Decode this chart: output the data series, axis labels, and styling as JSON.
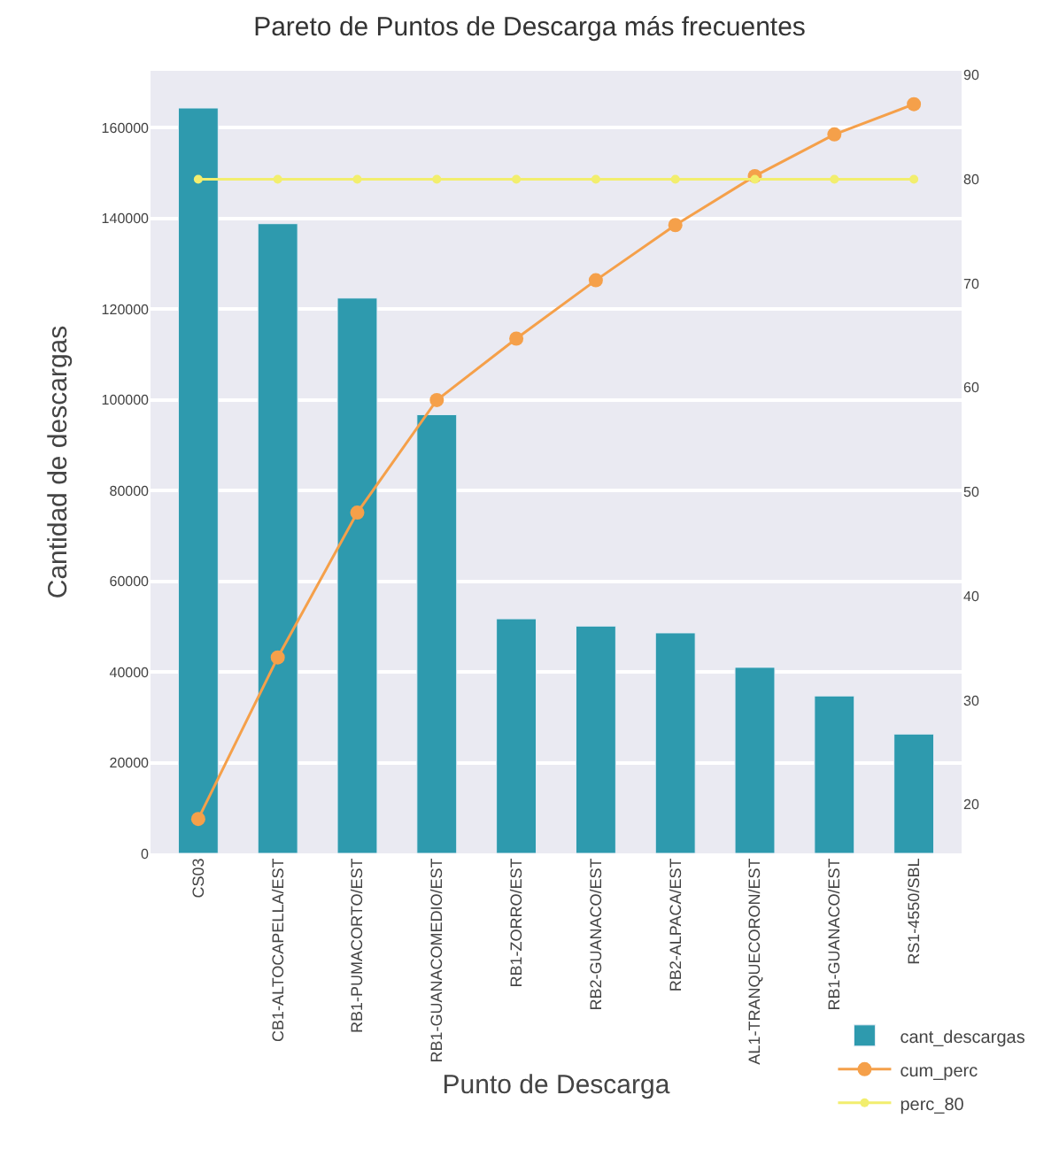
{
  "chart_data": {
    "type": "bar",
    "title": "Pareto de Puntos de Descarga más frecuentes",
    "xlabel": "Punto de Descarga",
    "ylabel": "Cantidad de descargas",
    "categories": [
      "CS03",
      "CB1-ALTOCAPELLA/EST",
      "RB1-PUMACORTO/EST",
      "RB1-GUANACOMEDIO/EST",
      "RB1-ZORRO/EST",
      "RB2-GUANACO/EST",
      "RB2-ALPACA/EST",
      "AL1-TRANQUECORON/EST",
      "RB1-GUANACO/EST",
      "RS1-4550/SBL"
    ],
    "series": [
      {
        "name": "cant_descargas",
        "color": "#2e9aae",
        "values": [
          164300,
          138800,
          122400,
          96700,
          51700,
          50100,
          48600,
          41000,
          34700,
          26300
        ]
      },
      {
        "name": "cum_perc",
        "type": "line",
        "axis": "y2",
        "color": "#f5a04a",
        "marker": "circle",
        "line_style": "solid",
        "values": [
          18.6,
          34.1,
          48.0,
          58.8,
          64.7,
          70.3,
          75.6,
          80.3,
          84.3,
          87.2
        ]
      },
      {
        "name": "perc_80",
        "type": "line",
        "axis": "y2",
        "color": "#f2ee6e",
        "marker": "circle",
        "line_style": "solid",
        "values": [
          80,
          80,
          80,
          80,
          80,
          80,
          80,
          80,
          80,
          80
        ]
      }
    ],
    "ylim": [
      0,
      172500
    ],
    "yticks": [
      0,
      20000,
      40000,
      60000,
      80000,
      100000,
      120000,
      140000,
      160000
    ],
    "y2lim": [
      15.3,
      90.4
    ],
    "y2ticks": [
      20,
      30,
      40,
      50,
      60,
      70,
      80,
      90
    ],
    "grid": "y",
    "legend": "bottom right"
  }
}
